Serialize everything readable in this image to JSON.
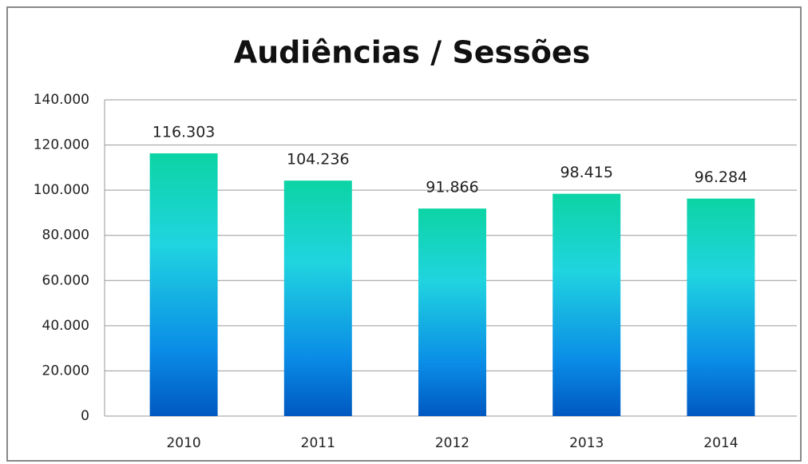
{
  "chart_data": {
    "type": "bar",
    "title": "Audiências / Sessões",
    "categories": [
      "2010",
      "2011",
      "2012",
      "2013",
      "2014"
    ],
    "values": [
      116303,
      104236,
      91866,
      98415,
      96284
    ],
    "value_labels": [
      "116.303",
      "104.236",
      "91.866",
      "98.415",
      "96.284"
    ],
    "ylim": [
      0,
      140000
    ],
    "yticks": [
      0,
      {
        "value": 20000,
        "label": "20.000"
      },
      {
        "value": 40000,
        "label": "40.000"
      },
      {
        "value": 60000,
        "label": "60.000"
      },
      {
        "value": 80000,
        "label": "80.000"
      },
      {
        "value": 100000,
        "label": "100.000"
      },
      {
        "value": 120000,
        "label": "120.000"
      },
      {
        "value": 140000,
        "label": "140.000"
      }
    ],
    "grid": true
  }
}
